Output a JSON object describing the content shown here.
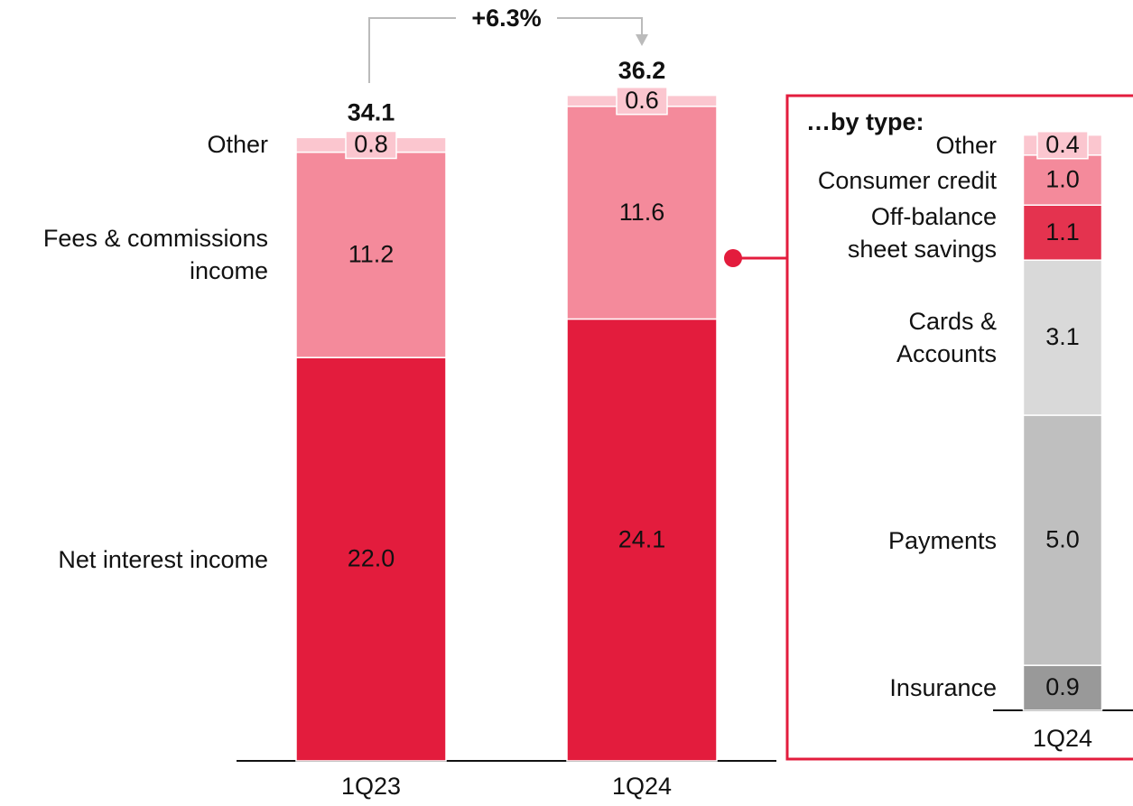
{
  "chart_data": [
    {
      "type": "stacked_bar",
      "categories": [
        "1Q23",
        "1Q24"
      ],
      "ylim": [
        0,
        41.5
      ],
      "series": [
        {
          "name": "Net interest income",
          "color": "#e31c3d",
          "label_color": "#111111",
          "values": [
            22,
            24.1
          ],
          "value_labels": [
            "22.0",
            "24.1"
          ]
        },
        {
          "name": "Fees & commissions\nincome",
          "color": "#f48a9b",
          "label_color": "#111111",
          "values": [
            11.2,
            11.6
          ]
        },
        {
          "name": "Other",
          "color": "#fbc6cf",
          "label_color": "#111111",
          "values": [
            0.8,
            0.6
          ]
        }
      ],
      "totals": [
        34.1,
        36.2
      ],
      "annotation": "+6.3%"
    },
    {
      "type": "stacked_bar",
      "title": "…by type:",
      "categories": [
        "1Q24"
      ],
      "ylim": [
        0,
        14.2
      ],
      "series": [
        {
          "name": "Insurance",
          "color": "#999999",
          "label_color": "#ffffff",
          "values": [
            0.9
          ]
        },
        {
          "name": "Payments",
          "color": "#bfbfbf",
          "label_color": "#ffffff",
          "values": [
            5
          ],
          "value_labels": [
            "5.0"
          ]
        },
        {
          "name": "Cards &\nAccounts",
          "color": "#d9d9d9",
          "label_color": "#111111",
          "values": [
            3.1
          ]
        },
        {
          "name": "Off-balance\nsheet savings",
          "color": "#e4334f",
          "label_color": "#111111",
          "values": [
            1.1
          ]
        },
        {
          "name": "Consumer credit",
          "color": "#f48a9b",
          "label_color": "#111111",
          "values": [
            1
          ],
          "value_labels": [
            "1.0"
          ]
        },
        {
          "name": "Other",
          "color": "#fbc6cf",
          "label_color": "#111111",
          "values": [
            0.4
          ]
        }
      ]
    }
  ]
}
